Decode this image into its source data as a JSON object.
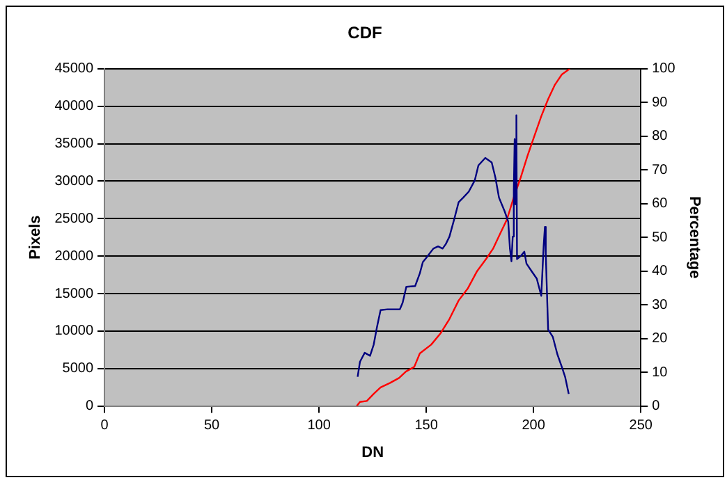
{
  "chart_data": {
    "type": "line",
    "title": "CDF",
    "xlabel": "DN",
    "ylabel": "Pixels",
    "y2label": "Percentage",
    "xlim": [
      0,
      250
    ],
    "xticks": [
      0,
      50,
      100,
      150,
      200,
      250
    ],
    "ylim": [
      0,
      45000
    ],
    "yticks": [
      0,
      5000,
      10000,
      15000,
      20000,
      25000,
      30000,
      35000,
      40000,
      45000
    ],
    "y2lim": [
      0,
      100
    ],
    "y2ticks": [
      0,
      10,
      20,
      30,
      40,
      50,
      60,
      70,
      80,
      90,
      100
    ],
    "grid": "y",
    "legend": false,
    "marker": "none",
    "line_style": "solid",
    "series": [
      {
        "color": "#000080",
        "x": [
          118,
          119.1,
          121.3,
          123.8,
          125.5,
          127,
          128.7,
          132,
          137.7,
          139,
          140.7,
          144.8,
          147,
          148.4,
          150.1,
          153.3,
          155.5,
          157.6,
          159.1,
          160.8,
          163,
          165.1,
          167.2,
          169.8,
          172.6,
          174.3,
          177.5,
          180.5,
          182.2,
          183.9,
          186.5,
          188.2,
          189,
          189.7,
          190.3,
          190.8,
          191.2,
          191.6,
          192,
          192.3,
          194,
          195.7,
          196.7,
          199.3,
          201.5,
          203.6,
          204.7,
          205.3,
          205.7,
          206.4,
          206.8,
          209,
          211.1,
          213.2,
          214.7,
          216.4
        ],
        "values": [
          3900,
          5900,
          7100,
          6700,
          8200,
          10500,
          12800,
          12900,
          12900,
          13800,
          15900,
          16000,
          17700,
          19200,
          19800,
          21000,
          21300,
          21000,
          21600,
          22600,
          24900,
          27200,
          27800,
          28600,
          30100,
          32100,
          33100,
          32500,
          30500,
          27800,
          26000,
          24600,
          21000,
          19300,
          22600,
          28800,
          35600,
          26900,
          38800,
          19600,
          20000,
          20600,
          19000,
          17900,
          17000,
          14700,
          21300,
          23900,
          20300,
          13800,
          10200,
          9200,
          6900,
          5200,
          3900,
          1600
        ]
      },
      {
        "color": "#ff0000",
        "axis": "y2",
        "x": [
          117.6,
          119.1,
          122.3,
          125.5,
          128.7,
          133,
          137.3,
          140.5,
          144.4,
          147,
          152.3,
          156.5,
          160.8,
          165.1,
          169.4,
          173.7,
          178,
          181.1,
          184.3,
          187.6,
          190.8,
          194,
          197.2,
          200.4,
          203.6,
          206.8,
          210,
          213.2,
          216.9
        ],
        "values": [
          0,
          1.2,
          1.5,
          3.6,
          5.5,
          6.8,
          8.3,
          10.2,
          11.6,
          15.6,
          18.2,
          21.4,
          25.8,
          31.3,
          34.9,
          40,
          43.7,
          46.6,
          50.9,
          55.3,
          61.9,
          67.7,
          74.2,
          80.1,
          85.9,
          91,
          95.3,
          98.3,
          100
        ]
      }
    ]
  }
}
